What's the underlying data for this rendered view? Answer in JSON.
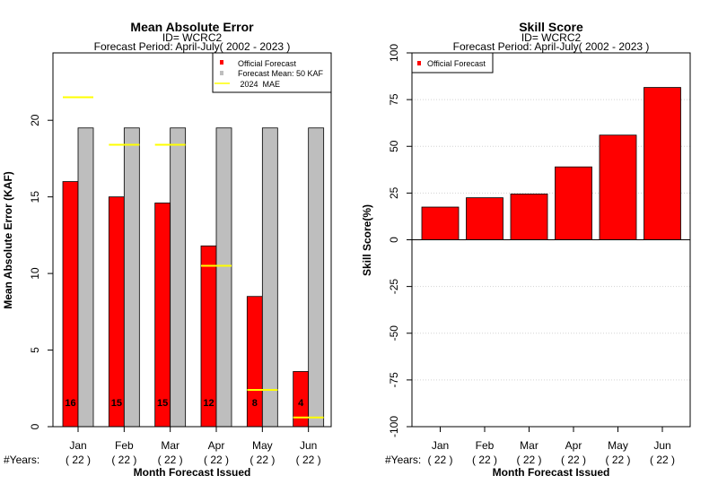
{
  "chart_data": [
    {
      "type": "bar",
      "title": "Mean Absolute Error",
      "subtitle_id": "ID= WCRC2",
      "subtitle_period": "Forecast Period: April-July( 2002 - 2023 )",
      "xlabel": "Month Forecast Issued",
      "ylabel": "Mean Absolute Error (KAF)",
      "ylim": [
        0,
        24.4
      ],
      "yticks": [
        "0",
        "5",
        "10",
        "15",
        "20"
      ],
      "categories": [
        "Jan",
        "Feb",
        "Mar",
        "Apr",
        "May",
        "Jun"
      ],
      "years_label": "#Years:",
      "years": [
        "( 22 )",
        "( 22 )",
        "( 22 )",
        "( 22 )",
        "( 22 )",
        "( 22 )"
      ],
      "series": [
        {
          "name": "Official Forecast",
          "values": [
            16.0,
            15.0,
            14.6,
            11.8,
            8.5,
            3.6
          ],
          "color": "#ff0000"
        },
        {
          "name": "Forecast Mean: 50 KAF",
          "values": [
            19.5,
            19.5,
            19.5,
            19.5,
            19.5,
            19.5
          ],
          "color": "#bebebe"
        },
        {
          "name": " 2024  MAE",
          "values": [
            21.5,
            18.4,
            18.4,
            10.5,
            2.4,
            0.6
          ],
          "color": "#ffff00"
        }
      ],
      "bar_labels": [
        "16",
        "15",
        "15",
        "12",
        "8",
        "4"
      ],
      "legend_position": "top-right",
      "grid": false
    },
    {
      "type": "bar",
      "title": "Skill Score",
      "subtitle_id": "ID= WCRC2",
      "subtitle_period": "Forecast Period: April-July( 2002 - 2023 )",
      "xlabel": "Month Forecast Issued",
      "ylabel": "Skill Score(%)",
      "ylim": [
        -100,
        100
      ],
      "yticks": [
        "-100",
        "-75",
        "-50",
        "-25",
        "0",
        "25",
        "50",
        "75",
        "100"
      ],
      "categories": [
        "Jan",
        "Feb",
        "Mar",
        "Apr",
        "May",
        "Jun"
      ],
      "years_label": "#Years:",
      "years": [
        "( 22 )",
        "( 22 )",
        "( 22 )",
        "( 22 )",
        "( 22 )",
        "( 22 )"
      ],
      "series": [
        {
          "name": "Official Forecast",
          "values": [
            17.5,
            22.5,
            24.5,
            39.0,
            56.0,
            81.5
          ],
          "color": "#ff0000"
        }
      ],
      "legend_position": "top-left",
      "grid": true
    }
  ]
}
